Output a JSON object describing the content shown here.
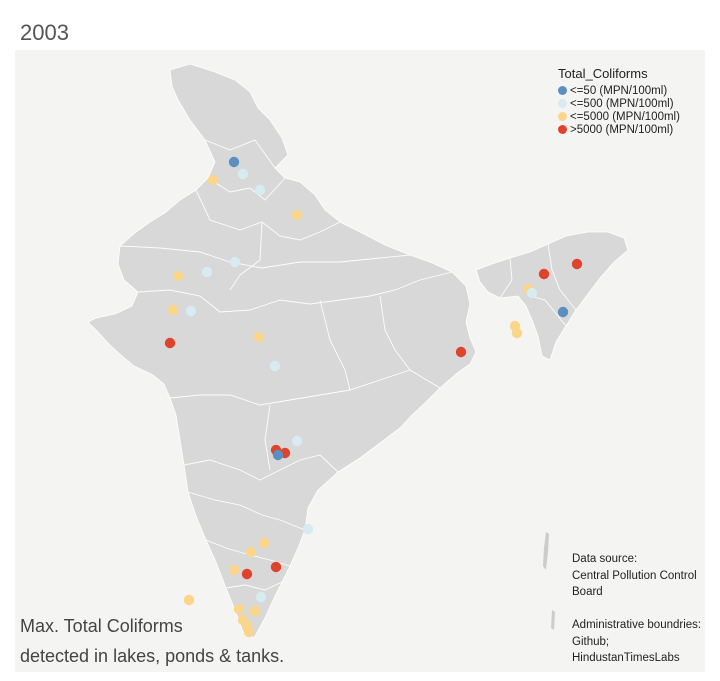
{
  "year": "2003",
  "legend": {
    "title": "Total_Coliforms",
    "items": [
      {
        "label": "<=50 (MPN/100ml)",
        "color": "#5b8fc2"
      },
      {
        "label": "<=500 (MPN/100ml)",
        "color": "#d6ecf2"
      },
      {
        "label": "<=5000 (MPN/100ml)",
        "color": "#fbd58a"
      },
      {
        "label": ">5000 (MPN/100ml)",
        "color": "#e0432c"
      }
    ]
  },
  "source": {
    "line1": "Data source:",
    "line2": "Central Pollution Control",
    "line3": "Board",
    "line4": "Administrative boundries:",
    "line5": "Github;",
    "line6": "HindustanTimesLabs"
  },
  "caption": {
    "line1": "Max. Total Coliforms",
    "line2": "detected in lakes, ponds & tanks."
  },
  "colors": {
    "land": "#d8d8d8",
    "sea": "#f4f4f2",
    "border": "#ffffff"
  }
}
